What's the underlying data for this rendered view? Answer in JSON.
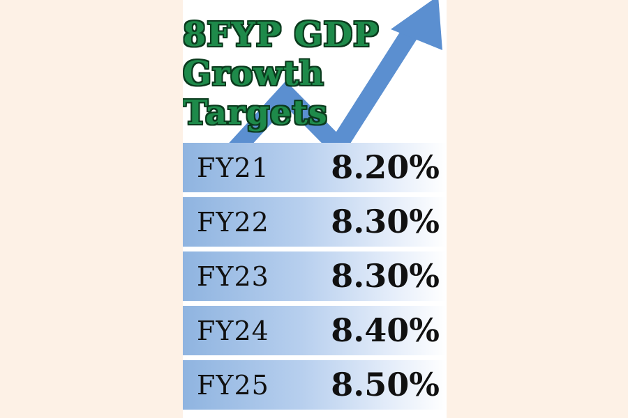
{
  "colors": {
    "page_background": "#fdf1e6",
    "panel_background": "#ffffff",
    "title_color": "#1e8a4a",
    "title_outline": "#0b3a1d",
    "arrow_color": "#5b8fd0",
    "row_gradient_start": "#8fb4e0",
    "text_color": "#111111"
  },
  "decoration": {
    "icon": "upward-trend-arrow-icon"
  },
  "chart_data": {
    "type": "table",
    "title": "8FYP GDP Growth Targets",
    "title_lines": [
      "8FYP GDP",
      "Growth",
      "Targets"
    ],
    "categories": [
      "FY21",
      "FY22",
      "FY23",
      "FY24",
      "FY25"
    ],
    "values": [
      8.2,
      8.3,
      8.3,
      8.4,
      8.5
    ],
    "value_labels": [
      "8.20%",
      "8.30%",
      "8.30%",
      "8.40%",
      "8.50%"
    ],
    "unit": "%"
  }
}
